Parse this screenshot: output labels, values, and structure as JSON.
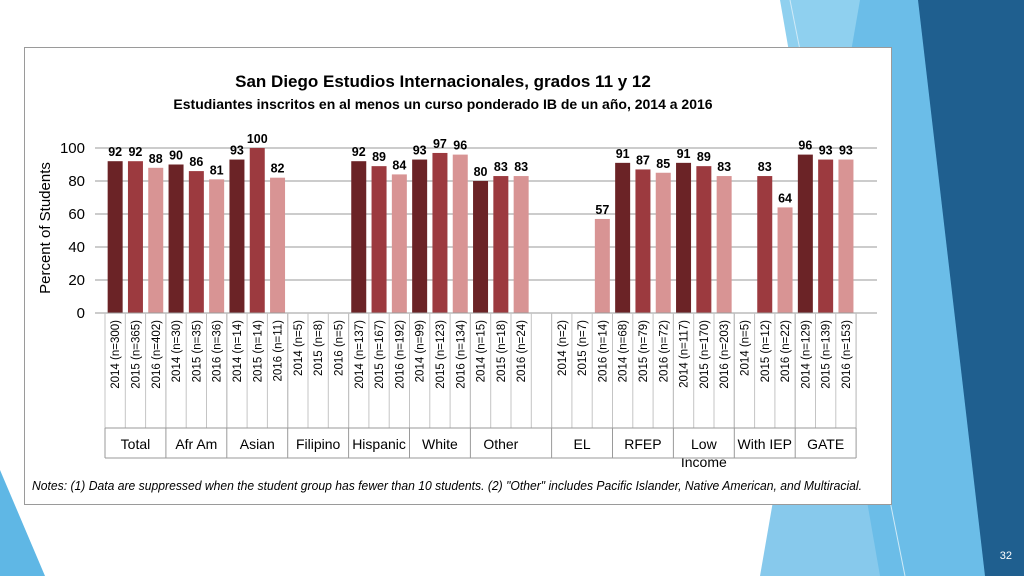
{
  "slide": {
    "page_number": "32",
    "colors": {
      "accent_dark": "#1f5f8f",
      "accent_light": "#5fb7e5"
    }
  },
  "chart_data": {
    "type": "bar",
    "title": "San Diego Estudios Internacionales, grados 11 y 12",
    "subtitle": "Estudiantes inscritos en al menos un curso ponderado IB de un año, 2014 a 2016",
    "ylabel": "Percent of Students",
    "ylim": [
      0,
      100
    ],
    "yticks": [
      0,
      20,
      40,
      60,
      80,
      100
    ],
    "grid": true,
    "legend": "none",
    "colors": {
      "2014": "#6b2326",
      "2015": "#9c3a3f",
      "2016": "#d89494"
    },
    "groups": [
      {
        "name": "Total",
        "bars": [
          {
            "year": "2014",
            "label": "2014 (n=300)",
            "value": 92
          },
          {
            "year": "2015",
            "label": "2015 (n=365)",
            "value": 92
          },
          {
            "year": "2016",
            "label": "2016 (n=402)",
            "value": 88
          }
        ]
      },
      {
        "name": "Afr Am",
        "bars": [
          {
            "year": "2014",
            "label": "2014 (n=30)",
            "value": 90
          },
          {
            "year": "2015",
            "label": "2015 (n=35)",
            "value": 86
          },
          {
            "year": "2016",
            "label": "2016 (n=36)",
            "value": 81
          }
        ]
      },
      {
        "name": "Asian",
        "bars": [
          {
            "year": "2014",
            "label": "2014 (n=14)",
            "value": 93
          },
          {
            "year": "2015",
            "label": "2015 (n=14)",
            "value": 100
          },
          {
            "year": "2016",
            "label": "2016 (n=11)",
            "value": 82
          }
        ]
      },
      {
        "name": "Filipino",
        "bars": [
          {
            "year": "2014",
            "label": "2014 (n=5)",
            "value": null
          },
          {
            "year": "2015",
            "label": "2015 (n=8)",
            "value": null
          },
          {
            "year": "2016",
            "label": "2016 (n=5)",
            "value": null
          }
        ]
      },
      {
        "name": "Hispanic",
        "bars": [
          {
            "year": "2014",
            "label": "2014 (n=137)",
            "value": 92
          },
          {
            "year": "2015",
            "label": "2015 (n=167)",
            "value": 89
          },
          {
            "year": "2016",
            "label": "2016 (n=192)",
            "value": 84
          }
        ]
      },
      {
        "name": "White",
        "bars": [
          {
            "year": "2014",
            "label": "2014 (n=99)",
            "value": 93
          },
          {
            "year": "2015",
            "label": "2015 (n=123)",
            "value": 97
          },
          {
            "year": "2016",
            "label": "2016 (n=134)",
            "value": 96
          }
        ]
      },
      {
        "name": "Other",
        "bars": [
          {
            "year": "2014",
            "label": "2014 (n=15)",
            "value": 80
          },
          {
            "year": "2015",
            "label": "2015 (n=18)",
            "value": 83
          },
          {
            "year": "2016",
            "label": "2016 (n=24)",
            "value": 83
          }
        ]
      },
      {
        "name": "EL",
        "bars": [
          {
            "year": "2014",
            "label": "2014 (n=2)",
            "value": null
          },
          {
            "year": "2015",
            "label": "2015 (n=7)",
            "value": null
          },
          {
            "year": "2016",
            "label": "2016 (n=14)",
            "value": 57
          }
        ]
      },
      {
        "name": "RFEP",
        "bars": [
          {
            "year": "2014",
            "label": "2014 (n=68)",
            "value": 91
          },
          {
            "year": "2015",
            "label": "2015 (n=79)",
            "value": 87
          },
          {
            "year": "2016",
            "label": "2016 (n=72)",
            "value": 85
          }
        ]
      },
      {
        "name": "Low Income",
        "bars": [
          {
            "year": "2014",
            "label": "2014 (n=117)",
            "value": 91
          },
          {
            "year": "2015",
            "label": "2015 (n=170)",
            "value": 89
          },
          {
            "year": "2016",
            "label": "2016 (n=203)",
            "value": 83
          }
        ]
      },
      {
        "name": "With IEP",
        "bars": [
          {
            "year": "2014",
            "label": "2014 (n=5)",
            "value": null
          },
          {
            "year": "2015",
            "label": "2015 (n=12)",
            "value": 83
          },
          {
            "year": "2016",
            "label": "2016 (n=22)",
            "value": 64
          }
        ]
      },
      {
        "name": "GATE",
        "bars": [
          {
            "year": "2014",
            "label": "2014 (n=129)",
            "value": 96
          },
          {
            "year": "2015",
            "label": "2015 (n=139)",
            "value": 93
          },
          {
            "year": "2016",
            "label": "2016 (n=153)",
            "value": 93
          }
        ]
      }
    ],
    "notes": "Notes: (1) Data are suppressed when the student group has fewer than 10 students. (2) \"Other\" includes Pacific Islander, Native American, and Multiracial."
  }
}
